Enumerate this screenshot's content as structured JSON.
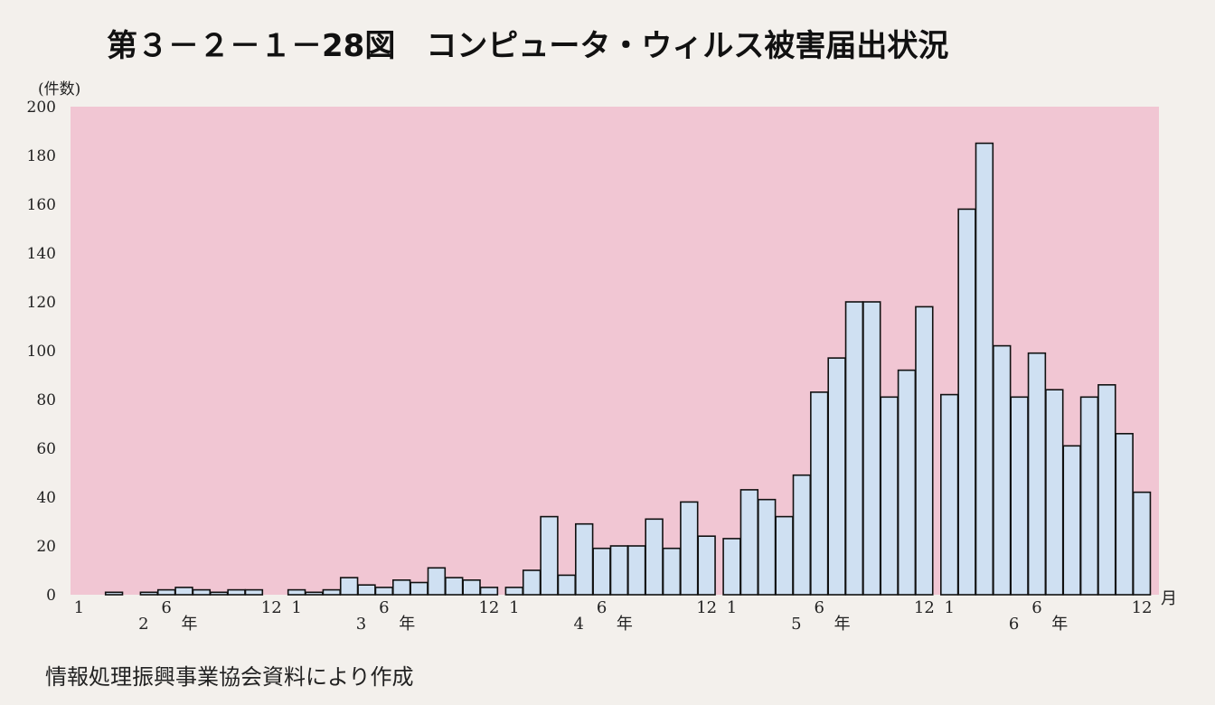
{
  "title": "第３－２－１－28図　コンピュータ・ウィルス被害届出状況",
  "source_note": "情報処理振興事業協会資料により作成",
  "colors": {
    "plot_bg": "#f1c6d3",
    "bar_fill": "#cfe0f2",
    "bar_stroke": "#111111",
    "page_bg": "#f3f0ec"
  },
  "chart_data": {
    "type": "bar",
    "title": "第３－２－１－28図　コンピュータ・ウィルス被害届出状況",
    "ylabel": "(件数)",
    "xlabel": "月",
    "ylim": [
      0,
      200
    ],
    "yticks": [
      0,
      20,
      40,
      60,
      80,
      100,
      120,
      140,
      160,
      180,
      200
    ],
    "grid": false,
    "year_suffix": "年",
    "years": [
      {
        "year": "2",
        "start_label": "1",
        "mid_label": "6",
        "end_label": "12",
        "values": [
          0,
          0,
          1,
          0,
          1,
          2,
          3,
          2,
          1,
          2,
          2,
          0
        ]
      },
      {
        "year": "3",
        "start_label": "1",
        "mid_label": "6",
        "end_label": "12",
        "values": [
          2,
          1,
          2,
          7,
          4,
          3,
          6,
          5,
          11,
          7,
          6,
          3
        ]
      },
      {
        "year": "4",
        "start_label": "1",
        "mid_label": "6",
        "end_label": "12",
        "values": [
          3,
          10,
          32,
          8,
          29,
          19,
          20,
          20,
          31,
          19,
          38,
          24
        ]
      },
      {
        "year": "5",
        "start_label": "1",
        "mid_label": "6",
        "end_label": "12",
        "values": [
          23,
          43,
          39,
          32,
          49,
          83,
          97,
          120,
          120,
          81,
          92,
          118
        ]
      },
      {
        "year": "6",
        "start_label": "1",
        "mid_label": "6",
        "end_label": "12",
        "values": [
          82,
          158,
          185,
          102,
          81,
          99,
          84,
          61,
          81,
          86,
          66,
          42
        ]
      }
    ]
  }
}
